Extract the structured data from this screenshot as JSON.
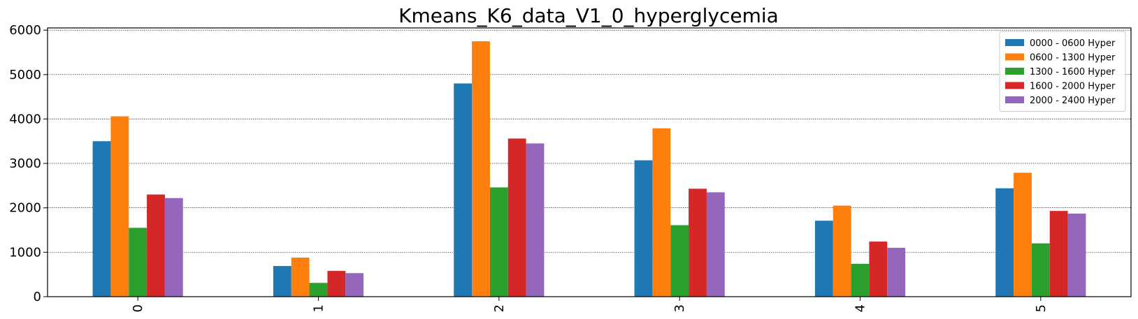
{
  "chart_data": {
    "type": "bar",
    "title": "Kmeans_K6_data_V1_0_hyperglycemia",
    "xlabel": "",
    "ylabel": "",
    "categories": [
      "0",
      "1",
      "2",
      "3",
      "4",
      "5"
    ],
    "ylim": [
      0,
      6050
    ],
    "yticks": [
      "0",
      "1000",
      "2000",
      "3000",
      "4000",
      "5000",
      "6000"
    ],
    "grid": true,
    "legend_position": "top-right",
    "series": [
      {
        "name": "0000 - 0600 Hyper",
        "color": "#1f77b4",
        "values": [
          3500,
          690,
          4800,
          3070,
          1710,
          2440
        ]
      },
      {
        "name": "0600 - 1300 Hyper",
        "color": "#ff7f0e",
        "values": [
          4060,
          880,
          5750,
          3790,
          2050,
          2790
        ]
      },
      {
        "name": "1300 - 1600 Hyper",
        "color": "#2ca02c",
        "values": [
          1550,
          310,
          2460,
          1610,
          740,
          1200
        ]
      },
      {
        "name": "1600 - 2000 Hyper",
        "color": "#d62728",
        "values": [
          2300,
          580,
          3560,
          2430,
          1240,
          1930
        ]
      },
      {
        "name": "2000 - 2400 Hyper",
        "color": "#9467bd",
        "values": [
          2220,
          530,
          3450,
          2350,
          1100,
          1870
        ]
      }
    ]
  }
}
